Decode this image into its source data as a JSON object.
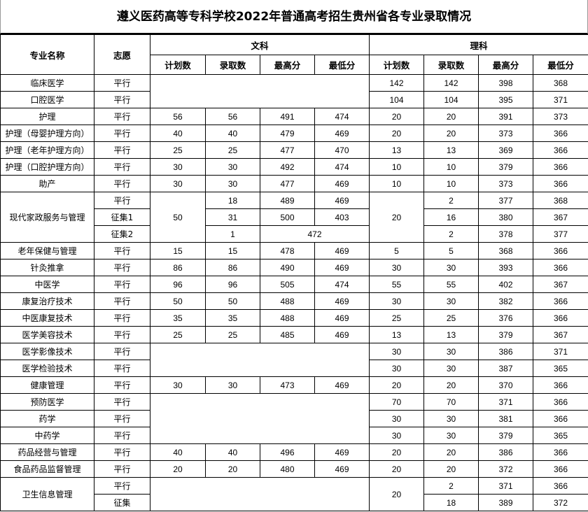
{
  "title": "遵义医药高等专科学校2022年普通高考招生贵州省各专业录取情况",
  "headers": {
    "major": "专业名称",
    "volunteer": "志愿",
    "wenke": "文科",
    "like": "理科",
    "sub": [
      "计划数",
      "录取数",
      "最高分",
      "最低分"
    ]
  },
  "rows": [
    [
      "临床医学",
      "平行",
      "",
      null,
      null,
      null,
      "142",
      "142",
      "398",
      "368"
    ],
    [
      "口腔医学",
      "平行",
      null,
      null,
      null,
      null,
      "104",
      "104",
      "395",
      "371"
    ],
    [
      "护理",
      "平行",
      "56",
      "56",
      "491",
      "474",
      "20",
      "20",
      "391",
      "373"
    ],
    [
      "护理（母婴护理方向）",
      "平行",
      "40",
      "40",
      "479",
      "469",
      "20",
      "20",
      "373",
      "366"
    ],
    [
      "护理（老年护理方向）",
      "平行",
      "25",
      "25",
      "477",
      "470",
      "13",
      "13",
      "369",
      "366"
    ],
    [
      "护理（口腔护理方向）",
      "平行",
      "30",
      "30",
      "492",
      "474",
      "10",
      "10",
      "379",
      "366"
    ],
    [
      "助产",
      "平行",
      "30",
      "30",
      "477",
      "469",
      "10",
      "10",
      "373",
      "366"
    ],
    [
      "现代家政服务与管理",
      "平行",
      "50",
      "18",
      "489",
      "469",
      "20",
      "2",
      "377",
      "368"
    ],
    [
      null,
      "征集1",
      null,
      "31",
      "500",
      "403",
      null,
      "16",
      "380",
      "367"
    ],
    [
      null,
      "征集2",
      null,
      "1",
      "472",
      null,
      null,
      "2",
      "378",
      "377"
    ],
    [
      "老年保健与管理",
      "平行",
      "15",
      "15",
      "478",
      "469",
      "5",
      "5",
      "368",
      "366"
    ],
    [
      "针灸推拿",
      "平行",
      "86",
      "86",
      "490",
      "469",
      "30",
      "30",
      "393",
      "366"
    ],
    [
      "中医学",
      "平行",
      "96",
      "96",
      "505",
      "474",
      "55",
      "55",
      "402",
      "367"
    ],
    [
      "康复治疗技术",
      "平行",
      "50",
      "50",
      "488",
      "469",
      "30",
      "30",
      "382",
      "366"
    ],
    [
      "中医康复技术",
      "平行",
      "35",
      "35",
      "488",
      "469",
      "25",
      "25",
      "376",
      "366"
    ],
    [
      "医学美容技术",
      "平行",
      "25",
      "25",
      "485",
      "469",
      "13",
      "13",
      "379",
      "367"
    ],
    [
      "医学影像技术",
      "平行",
      "",
      null,
      null,
      null,
      "30",
      "30",
      "386",
      "371"
    ],
    [
      "医学检验技术",
      "平行",
      null,
      null,
      null,
      null,
      "30",
      "30",
      "387",
      "365"
    ],
    [
      "健康管理",
      "平行",
      "30",
      "30",
      "473",
      "469",
      "20",
      "20",
      "370",
      "366"
    ],
    [
      "预防医学",
      "平行",
      "",
      null,
      null,
      null,
      "70",
      "70",
      "371",
      "366"
    ],
    [
      "药学",
      "平行",
      null,
      null,
      null,
      null,
      "30",
      "30",
      "381",
      "366"
    ],
    [
      "中药学",
      "平行",
      null,
      null,
      null,
      null,
      "30",
      "30",
      "379",
      "365"
    ],
    [
      "药品经营与管理",
      "平行",
      "40",
      "40",
      "496",
      "469",
      "20",
      "20",
      "386",
      "366"
    ],
    [
      "食品药品监督管理",
      "平行",
      "20",
      "20",
      "480",
      "469",
      "20",
      "20",
      "372",
      "366"
    ],
    [
      "卫生信息管理",
      "平行",
      "",
      null,
      null,
      null,
      "20",
      "2",
      "371",
      "366"
    ],
    [
      null,
      "征集",
      null,
      null,
      null,
      null,
      null,
      "18",
      "389",
      "372"
    ]
  ]
}
